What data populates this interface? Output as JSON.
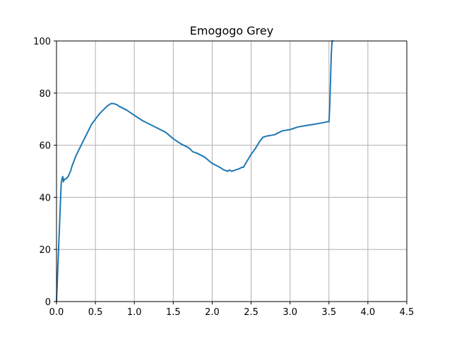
{
  "chart_data": {
    "type": "line",
    "title": "Emogogo Grey",
    "xlabel": "",
    "ylabel": "",
    "xlim": [
      0,
      4.5
    ],
    "ylim": [
      0,
      100
    ],
    "xticks": [
      "0.0",
      "0.5",
      "1.0",
      "1.5",
      "2.0",
      "2.5",
      "3.0",
      "3.5",
      "4.0",
      "4.5"
    ],
    "yticks": [
      "0",
      "20",
      "40",
      "60",
      "80",
      "100"
    ],
    "grid": true,
    "series": [
      {
        "color": "#1f77b4",
        "x": [
          0.0,
          0.02,
          0.04,
          0.06,
          0.07,
          0.08,
          0.09,
          0.1,
          0.12,
          0.15,
          0.18,
          0.2,
          0.25,
          0.3,
          0.35,
          0.4,
          0.45,
          0.5,
          0.55,
          0.6,
          0.65,
          0.7,
          0.73,
          0.75,
          0.78,
          0.8,
          0.9,
          1.0,
          1.1,
          1.2,
          1.3,
          1.4,
          1.5,
          1.6,
          1.7,
          1.75,
          1.8,
          1.9,
          2.0,
          2.1,
          2.15,
          2.2,
          2.22,
          2.25,
          2.3,
          2.35,
          2.38,
          2.4,
          2.45,
          2.5,
          2.55,
          2.6,
          2.65,
          2.7,
          2.8,
          2.9,
          3.0,
          3.1,
          3.2,
          3.3,
          3.4,
          3.48,
          3.5,
          3.51,
          3.52,
          3.53,
          3.54,
          3.55
        ],
        "y": [
          0,
          15,
          30,
          45,
          47,
          48,
          46,
          47,
          47,
          48,
          50,
          52,
          56,
          59,
          62,
          65,
          68,
          70,
          72,
          73.5,
          75,
          76,
          76,
          75.8,
          75.5,
          75,
          73.5,
          71.5,
          69.5,
          68,
          66.5,
          65,
          62.5,
          60.5,
          59,
          57.5,
          57,
          55.5,
          53,
          51.5,
          50.5,
          50,
          50.5,
          50,
          50.5,
          51,
          51.5,
          51.5,
          54,
          56.5,
          58.5,
          61,
          63,
          63.5,
          64,
          65.5,
          66,
          67,
          67.5,
          68,
          68.5,
          69,
          69,
          75,
          85,
          95,
          100,
          100
        ]
      }
    ]
  }
}
